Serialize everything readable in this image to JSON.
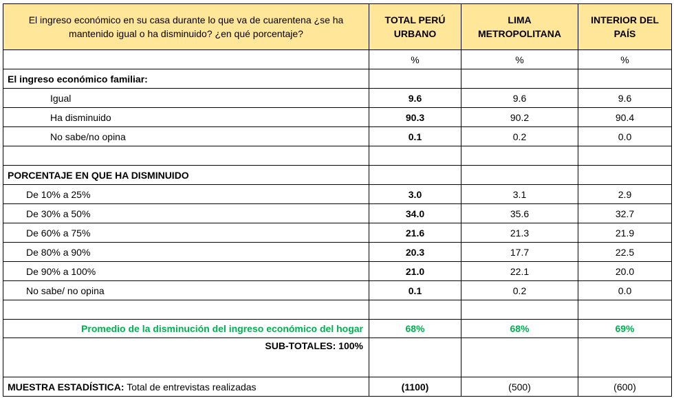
{
  "header": {
    "question": "El ingreso económico en su casa durante lo que va de cuarentena ¿se ha mantenido igual o ha disminuido? ¿en qué porcentaje?",
    "col_total": "TOTAL PERÚ URBANO",
    "col_lima": "LIMA METROPOLITANA",
    "col_interior": "INTERIOR DEL PAÍS"
  },
  "units": {
    "total": "%",
    "lima": "%",
    "interior": "%"
  },
  "section1": {
    "title": "El ingreso económico familiar:",
    "rows": [
      {
        "label": "Igual",
        "total": "9.6",
        "lima": "9.6",
        "interior": "9.6"
      },
      {
        "label": "Ha disminuido",
        "total": "90.3",
        "lima": "90.2",
        "interior": "90.4"
      },
      {
        "label": "No sabe/no opina",
        "total": "0.1",
        "lima": "0.2",
        "interior": "0.0"
      }
    ]
  },
  "section2": {
    "title": "PORCENTAJE EN QUE HA DISMINUIDO",
    "rows": [
      {
        "label": "De 10% a 25%",
        "total": "3.0",
        "lima": "3.1",
        "interior": "2.9"
      },
      {
        "label": "De 30% a 50%",
        "total": "34.0",
        "lima": "35.6",
        "interior": "32.7"
      },
      {
        "label": "De 60% a 75%",
        "total": "21.6",
        "lima": "21.3",
        "interior": "21.9"
      },
      {
        "label": "De 80% a 90%",
        "total": "20.3",
        "lima": "17.7",
        "interior": "22.5"
      },
      {
        "label": "De 90% a 100%",
        "total": "21.0",
        "lima": "22.1",
        "interior": "20.0"
      },
      {
        "label": "No sabe/ no opina",
        "total": "0.1",
        "lima": "0.2",
        "interior": "0.0"
      }
    ]
  },
  "promedio": {
    "label": "Promedio de la disminución del ingreso económico del hogar",
    "total": "68%",
    "lima": "68%",
    "interior": "69%",
    "color": "#00b050"
  },
  "subtotales": "SUB-TOTALES: 100%",
  "muestra": {
    "label_bold": "MUESTRA ESTADÍSTICA:",
    "label_rest": " Total de entrevistas realizadas",
    "total": "(1100)",
    "lima": "(500)",
    "interior": "(600)"
  },
  "colors": {
    "header_bg": "#ffe699"
  }
}
